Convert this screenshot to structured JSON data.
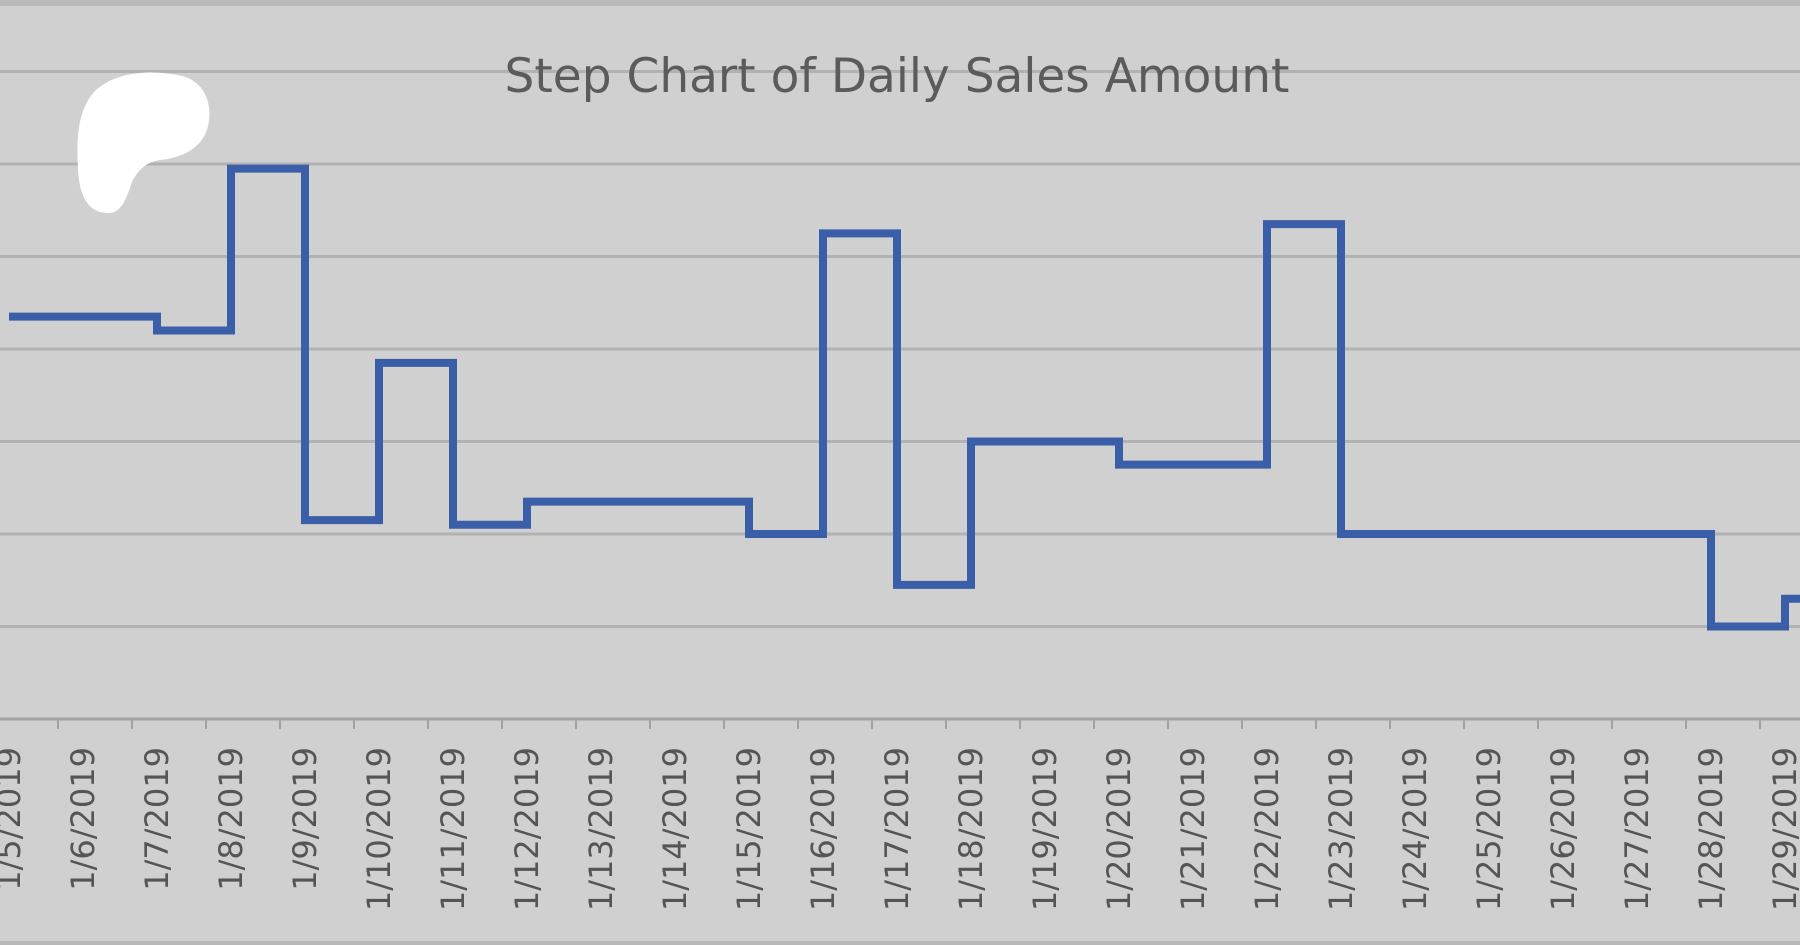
{
  "chart_data": {
    "type": "line",
    "step": true,
    "title": "Step Chart of Daily Sales Amount",
    "xlabel": "",
    "ylabel": "",
    "categories": [
      "1/5/2019",
      "1/6/2019",
      "1/7/2019",
      "1/8/2019",
      "1/9/2019",
      "1/10/2019",
      "1/11/2019",
      "1/12/2019",
      "1/13/2019",
      "1/14/2019",
      "1/15/2019",
      "1/16/2019",
      "1/17/2019",
      "1/18/2019",
      "1/19/2019",
      "1/20/2019",
      "1/21/2019",
      "1/22/2019",
      "1/23/2019",
      "1/24/2019",
      "1/25/2019",
      "1/26/2019",
      "1/27/2019",
      "1/28/2019",
      "1/29/2019"
    ],
    "series": [
      {
        "values": [
          4.35,
          4.35,
          4.2,
          5.95,
          2.15,
          3.85,
          2.1,
          2.35,
          2.35,
          2.35,
          2.0,
          5.25,
          1.45,
          3.0,
          3.0,
          2.75,
          2.75,
          5.35,
          2.0,
          2.0,
          2.0,
          2.0,
          2.0,
          1.0,
          1.3
        ]
      }
    ],
    "ylim": [
      0,
      7
    ],
    "grid": true,
    "legend": "none",
    "colors": {
      "line": "#3a5ea7",
      "grid": "#b2b2b2",
      "background": "#d0d0d0",
      "axis": "#a3a3a3"
    }
  }
}
